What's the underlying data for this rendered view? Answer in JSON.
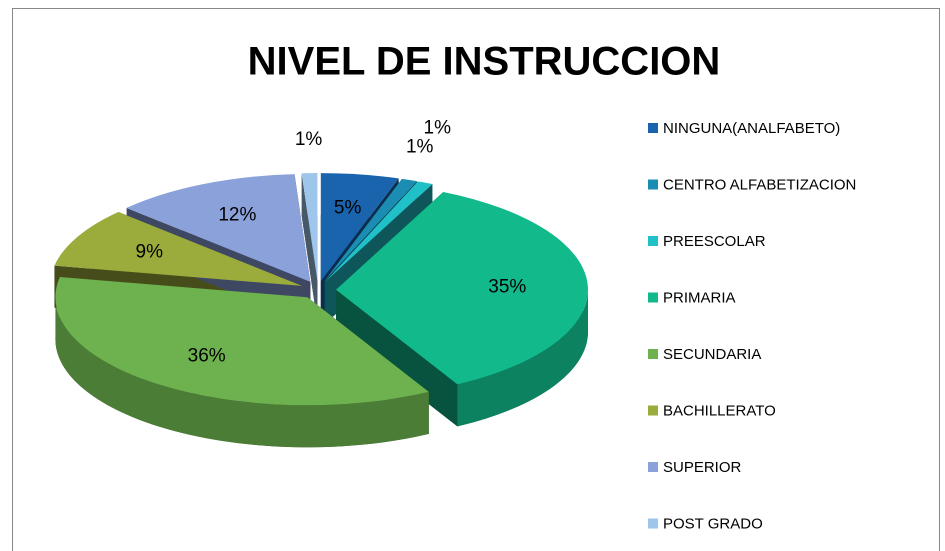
{
  "chart_data": {
    "type": "pie",
    "title": "NIVEL DE INSTRUCCION",
    "categories": [
      "NINGUNA(ANALFABETO)",
      "CENTRO ALFABETIZACION",
      "PREESCOLAR",
      "PRIMARIA",
      "SECUNDARIA",
      "BACHILLERATO",
      "SUPERIOR",
      "POST GRADO"
    ],
    "values": [
      5,
      1,
      1,
      35,
      36,
      9,
      12,
      1
    ],
    "value_labels": [
      "5%",
      "1%",
      "1%",
      "35%",
      "36%",
      "9%",
      "12%",
      "1%"
    ],
    "colors": [
      "#1a63ad",
      "#1b8db3",
      "#20c0c9",
      "#12b98b",
      "#6db24f",
      "#9bab3c",
      "#8ba1d9",
      "#9dc6ea"
    ],
    "legend": "right"
  }
}
